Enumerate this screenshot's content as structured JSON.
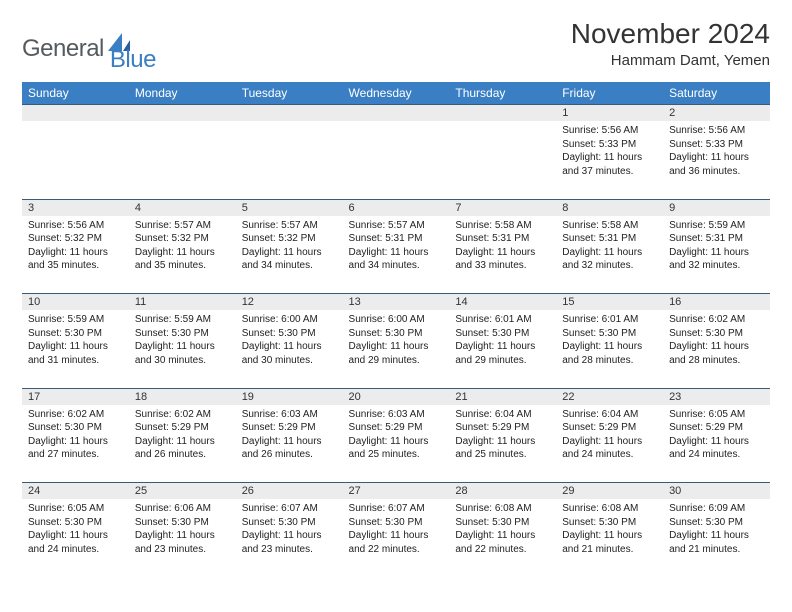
{
  "logo": {
    "general": "General",
    "blue": "Blue"
  },
  "header": {
    "title": "November 2024",
    "location": "Hammam Damt, Yemen"
  },
  "colors": {
    "header_bg": "#3a7fc4",
    "header_text": "#ffffff",
    "daynum_bg": "#ececec",
    "border": "#3a5a7a",
    "logo_gray": "#555a5e",
    "logo_blue": "#3a7fc4"
  },
  "weekdays": [
    "Sunday",
    "Monday",
    "Tuesday",
    "Wednesday",
    "Thursday",
    "Friday",
    "Saturday"
  ],
  "weeks": [
    {
      "nums": [
        "",
        "",
        "",
        "",
        "",
        "1",
        "2"
      ],
      "cells": [
        null,
        null,
        null,
        null,
        null,
        {
          "sunrise": "5:56 AM",
          "sunset": "5:33 PM",
          "dl1": "Daylight: 11 hours",
          "dl2": "and 37 minutes."
        },
        {
          "sunrise": "5:56 AM",
          "sunset": "5:33 PM",
          "dl1": "Daylight: 11 hours",
          "dl2": "and 36 minutes."
        }
      ]
    },
    {
      "nums": [
        "3",
        "4",
        "5",
        "6",
        "7",
        "8",
        "9"
      ],
      "cells": [
        {
          "sunrise": "5:56 AM",
          "sunset": "5:32 PM",
          "dl1": "Daylight: 11 hours",
          "dl2": "and 35 minutes."
        },
        {
          "sunrise": "5:57 AM",
          "sunset": "5:32 PM",
          "dl1": "Daylight: 11 hours",
          "dl2": "and 35 minutes."
        },
        {
          "sunrise": "5:57 AM",
          "sunset": "5:32 PM",
          "dl1": "Daylight: 11 hours",
          "dl2": "and 34 minutes."
        },
        {
          "sunrise": "5:57 AM",
          "sunset": "5:31 PM",
          "dl1": "Daylight: 11 hours",
          "dl2": "and 34 minutes."
        },
        {
          "sunrise": "5:58 AM",
          "sunset": "5:31 PM",
          "dl1": "Daylight: 11 hours",
          "dl2": "and 33 minutes."
        },
        {
          "sunrise": "5:58 AM",
          "sunset": "5:31 PM",
          "dl1": "Daylight: 11 hours",
          "dl2": "and 32 minutes."
        },
        {
          "sunrise": "5:59 AM",
          "sunset": "5:31 PM",
          "dl1": "Daylight: 11 hours",
          "dl2": "and 32 minutes."
        }
      ]
    },
    {
      "nums": [
        "10",
        "11",
        "12",
        "13",
        "14",
        "15",
        "16"
      ],
      "cells": [
        {
          "sunrise": "5:59 AM",
          "sunset": "5:30 PM",
          "dl1": "Daylight: 11 hours",
          "dl2": "and 31 minutes."
        },
        {
          "sunrise": "5:59 AM",
          "sunset": "5:30 PM",
          "dl1": "Daylight: 11 hours",
          "dl2": "and 30 minutes."
        },
        {
          "sunrise": "6:00 AM",
          "sunset": "5:30 PM",
          "dl1": "Daylight: 11 hours",
          "dl2": "and 30 minutes."
        },
        {
          "sunrise": "6:00 AM",
          "sunset": "5:30 PM",
          "dl1": "Daylight: 11 hours",
          "dl2": "and 29 minutes."
        },
        {
          "sunrise": "6:01 AM",
          "sunset": "5:30 PM",
          "dl1": "Daylight: 11 hours",
          "dl2": "and 29 minutes."
        },
        {
          "sunrise": "6:01 AM",
          "sunset": "5:30 PM",
          "dl1": "Daylight: 11 hours",
          "dl2": "and 28 minutes."
        },
        {
          "sunrise": "6:02 AM",
          "sunset": "5:30 PM",
          "dl1": "Daylight: 11 hours",
          "dl2": "and 28 minutes."
        }
      ]
    },
    {
      "nums": [
        "17",
        "18",
        "19",
        "20",
        "21",
        "22",
        "23"
      ],
      "cells": [
        {
          "sunrise": "6:02 AM",
          "sunset": "5:30 PM",
          "dl1": "Daylight: 11 hours",
          "dl2": "and 27 minutes."
        },
        {
          "sunrise": "6:02 AM",
          "sunset": "5:29 PM",
          "dl1": "Daylight: 11 hours",
          "dl2": "and 26 minutes."
        },
        {
          "sunrise": "6:03 AM",
          "sunset": "5:29 PM",
          "dl1": "Daylight: 11 hours",
          "dl2": "and 26 minutes."
        },
        {
          "sunrise": "6:03 AM",
          "sunset": "5:29 PM",
          "dl1": "Daylight: 11 hours",
          "dl2": "and 25 minutes."
        },
        {
          "sunrise": "6:04 AM",
          "sunset": "5:29 PM",
          "dl1": "Daylight: 11 hours",
          "dl2": "and 25 minutes."
        },
        {
          "sunrise": "6:04 AM",
          "sunset": "5:29 PM",
          "dl1": "Daylight: 11 hours",
          "dl2": "and 24 minutes."
        },
        {
          "sunrise": "6:05 AM",
          "sunset": "5:29 PM",
          "dl1": "Daylight: 11 hours",
          "dl2": "and 24 minutes."
        }
      ]
    },
    {
      "nums": [
        "24",
        "25",
        "26",
        "27",
        "28",
        "29",
        "30"
      ],
      "cells": [
        {
          "sunrise": "6:05 AM",
          "sunset": "5:30 PM",
          "dl1": "Daylight: 11 hours",
          "dl2": "and 24 minutes."
        },
        {
          "sunrise": "6:06 AM",
          "sunset": "5:30 PM",
          "dl1": "Daylight: 11 hours",
          "dl2": "and 23 minutes."
        },
        {
          "sunrise": "6:07 AM",
          "sunset": "5:30 PM",
          "dl1": "Daylight: 11 hours",
          "dl2": "and 23 minutes."
        },
        {
          "sunrise": "6:07 AM",
          "sunset": "5:30 PM",
          "dl1": "Daylight: 11 hours",
          "dl2": "and 22 minutes."
        },
        {
          "sunrise": "6:08 AM",
          "sunset": "5:30 PM",
          "dl1": "Daylight: 11 hours",
          "dl2": "and 22 minutes."
        },
        {
          "sunrise": "6:08 AM",
          "sunset": "5:30 PM",
          "dl1": "Daylight: 11 hours",
          "dl2": "and 21 minutes."
        },
        {
          "sunrise": "6:09 AM",
          "sunset": "5:30 PM",
          "dl1": "Daylight: 11 hours",
          "dl2": "and 21 minutes."
        }
      ]
    }
  ],
  "labels": {
    "sunrise": "Sunrise: ",
    "sunset": "Sunset: "
  }
}
